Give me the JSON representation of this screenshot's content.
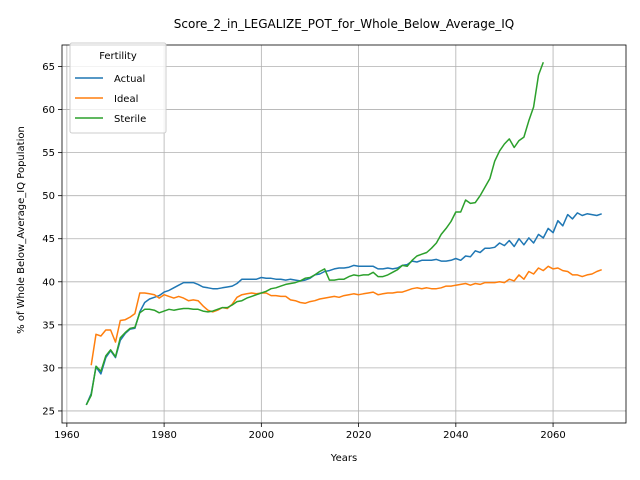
{
  "chart_data": {
    "type": "line",
    "title": "Score_2_in_LEGALIZE_POT_for_Whole_Below_Average_IQ",
    "xlabel": "Years",
    "ylabel": "% of Whole Below_Average_IQ Population",
    "xlim": [
      1959,
      2075
    ],
    "ylim": [
      23.6,
      67.5
    ],
    "xticks": [
      1960,
      1980,
      2000,
      2020,
      2040,
      2060
    ],
    "yticks": [
      25,
      30,
      35,
      40,
      45,
      50,
      55,
      60,
      65
    ],
    "grid": true,
    "legend": {
      "title": "Fertility",
      "placement": "top-left"
    },
    "series": [
      {
        "name": "Actual",
        "color": "#1f77b4",
        "points": [
          [
            1964,
            25.7
          ],
          [
            1965,
            27
          ],
          [
            1966,
            30.1
          ],
          [
            1967,
            29.3
          ],
          [
            1968,
            31.2
          ],
          [
            1969,
            32
          ],
          [
            1970,
            31.2
          ],
          [
            1971,
            33.2
          ],
          [
            1972,
            34
          ],
          [
            1973,
            34.5
          ],
          [
            1974,
            34.6
          ],
          [
            1975,
            36.5
          ],
          [
            1976,
            37.6
          ],
          [
            1977,
            38
          ],
          [
            1978,
            38.2
          ],
          [
            1979,
            38.4
          ],
          [
            1980,
            38.8
          ],
          [
            1981,
            39
          ],
          [
            1982,
            39.3
          ],
          [
            1983,
            39.6
          ],
          [
            1984,
            39.9
          ],
          [
            1985,
            39.9
          ],
          [
            1986,
            39.9
          ],
          [
            1987,
            39.7
          ],
          [
            1988,
            39.4
          ],
          [
            1989,
            39.3
          ],
          [
            1990,
            39.2
          ],
          [
            1991,
            39.2
          ],
          [
            1992,
            39.3
          ],
          [
            1993,
            39.4
          ],
          [
            1994,
            39.5
          ],
          [
            1995,
            39.8
          ],
          [
            1996,
            40.3
          ],
          [
            1997,
            40.3
          ],
          [
            1998,
            40.3
          ],
          [
            1999,
            40.3
          ],
          [
            2000,
            40.5
          ],
          [
            2001,
            40.4
          ],
          [
            2002,
            40.4
          ],
          [
            2003,
            40.3
          ],
          [
            2004,
            40.3
          ],
          [
            2005,
            40.2
          ],
          [
            2006,
            40.3
          ],
          [
            2007,
            40.2
          ],
          [
            2008,
            40.1
          ],
          [
            2009,
            40.2
          ],
          [
            2010,
            40.4
          ],
          [
            2011,
            40.8
          ],
          [
            2012,
            40.9
          ],
          [
            2013,
            41.2
          ],
          [
            2014,
            41.3
          ],
          [
            2015,
            41.5
          ],
          [
            2016,
            41.6
          ],
          [
            2017,
            41.6
          ],
          [
            2018,
            41.7
          ],
          [
            2019,
            41.9
          ],
          [
            2020,
            41.8
          ],
          [
            2021,
            41.8
          ],
          [
            2022,
            41.8
          ],
          [
            2023,
            41.8
          ],
          [
            2024,
            41.5
          ],
          [
            2025,
            41.5
          ],
          [
            2026,
            41.6
          ],
          [
            2027,
            41.5
          ],
          [
            2028,
            41.6
          ],
          [
            2029,
            41.9
          ],
          [
            2030,
            42
          ],
          [
            2031,
            42.4
          ],
          [
            2032,
            42.3
          ],
          [
            2033,
            42.5
          ],
          [
            2034,
            42.5
          ],
          [
            2035,
            42.5
          ],
          [
            2036,
            42.6
          ],
          [
            2037,
            42.4
          ],
          [
            2038,
            42.4
          ],
          [
            2039,
            42.5
          ],
          [
            2040,
            42.7
          ],
          [
            2041,
            42.5
          ],
          [
            2042,
            43
          ],
          [
            2043,
            42.9
          ],
          [
            2044,
            43.6
          ],
          [
            2045,
            43.4
          ],
          [
            2046,
            43.9
          ],
          [
            2047,
            43.9
          ],
          [
            2048,
            44
          ],
          [
            2049,
            44.5
          ],
          [
            2050,
            44.2
          ],
          [
            2051,
            44.8
          ],
          [
            2052,
            44.1
          ],
          [
            2053,
            45
          ],
          [
            2054,
            44.3
          ],
          [
            2055,
            45.1
          ],
          [
            2056,
            44.5
          ],
          [
            2057,
            45.5
          ],
          [
            2058,
            45.1
          ],
          [
            2059,
            46.2
          ],
          [
            2060,
            45.7
          ],
          [
            2061,
            47.1
          ],
          [
            2062,
            46.5
          ],
          [
            2063,
            47.8
          ],
          [
            2064,
            47.3
          ],
          [
            2065,
            48
          ],
          [
            2066,
            47.7
          ],
          [
            2067,
            47.9
          ],
          [
            2068,
            47.8
          ],
          [
            2069,
            47.7
          ],
          [
            2070,
            47.9
          ]
        ]
      },
      {
        "name": "Ideal",
        "color": "#ff7f0e",
        "points": [
          [
            1965,
            30.3
          ],
          [
            1966,
            33.9
          ],
          [
            1967,
            33.7
          ],
          [
            1968,
            34.4
          ],
          [
            1969,
            34.4
          ],
          [
            1970,
            33
          ],
          [
            1971,
            35.5
          ],
          [
            1972,
            35.6
          ],
          [
            1973,
            35.9
          ],
          [
            1974,
            36.3
          ],
          [
            1975,
            38.7
          ],
          [
            1976,
            38.7
          ],
          [
            1977,
            38.6
          ],
          [
            1978,
            38.5
          ],
          [
            1979,
            38.1
          ],
          [
            1980,
            38.5
          ],
          [
            1981,
            38.3
          ],
          [
            1982,
            38.1
          ],
          [
            1983,
            38.3
          ],
          [
            1984,
            38.1
          ],
          [
            1985,
            37.8
          ],
          [
            1986,
            37.9
          ],
          [
            1987,
            37.8
          ],
          [
            1988,
            37.2
          ],
          [
            1989,
            36.7
          ],
          [
            1990,
            36.5
          ],
          [
            1991,
            36.7
          ],
          [
            1992,
            37
          ],
          [
            1993,
            36.9
          ],
          [
            1994,
            37.4
          ],
          [
            1995,
            38.2
          ],
          [
            1996,
            38.5
          ],
          [
            1997,
            38.6
          ],
          [
            1998,
            38.7
          ],
          [
            1999,
            38.6
          ],
          [
            2000,
            38.7
          ],
          [
            2001,
            38.7
          ],
          [
            2002,
            38.4
          ],
          [
            2003,
            38.4
          ],
          [
            2004,
            38.3
          ],
          [
            2005,
            38.3
          ],
          [
            2006,
            37.9
          ],
          [
            2007,
            37.8
          ],
          [
            2008,
            37.6
          ],
          [
            2009,
            37.5
          ],
          [
            2010,
            37.7
          ],
          [
            2011,
            37.8
          ],
          [
            2012,
            38
          ],
          [
            2013,
            38.1
          ],
          [
            2014,
            38.2
          ],
          [
            2015,
            38.3
          ],
          [
            2016,
            38.2
          ],
          [
            2017,
            38.4
          ],
          [
            2018,
            38.5
          ],
          [
            2019,
            38.6
          ],
          [
            2020,
            38.5
          ],
          [
            2021,
            38.6
          ],
          [
            2022,
            38.7
          ],
          [
            2023,
            38.8
          ],
          [
            2024,
            38.5
          ],
          [
            2025,
            38.6
          ],
          [
            2026,
            38.7
          ],
          [
            2027,
            38.7
          ],
          [
            2028,
            38.8
          ],
          [
            2029,
            38.8
          ],
          [
            2030,
            39
          ],
          [
            2031,
            39.2
          ],
          [
            2032,
            39.3
          ],
          [
            2033,
            39.2
          ],
          [
            2034,
            39.3
          ],
          [
            2035,
            39.2
          ],
          [
            2036,
            39.2
          ],
          [
            2037,
            39.3
          ],
          [
            2038,
            39.5
          ],
          [
            2039,
            39.5
          ],
          [
            2040,
            39.6
          ],
          [
            2041,
            39.7
          ],
          [
            2042,
            39.8
          ],
          [
            2043,
            39.6
          ],
          [
            2044,
            39.8
          ],
          [
            2045,
            39.7
          ],
          [
            2046,
            39.9
          ],
          [
            2047,
            39.9
          ],
          [
            2048,
            39.9
          ],
          [
            2049,
            40
          ],
          [
            2050,
            39.9
          ],
          [
            2051,
            40.3
          ],
          [
            2052,
            40.1
          ],
          [
            2053,
            40.8
          ],
          [
            2054,
            40.3
          ],
          [
            2055,
            41.2
          ],
          [
            2056,
            40.9
          ],
          [
            2057,
            41.6
          ],
          [
            2058,
            41.3
          ],
          [
            2059,
            41.8
          ],
          [
            2060,
            41.5
          ],
          [
            2061,
            41.6
          ],
          [
            2062,
            41.3
          ],
          [
            2063,
            41.2
          ],
          [
            2064,
            40.8
          ],
          [
            2065,
            40.8
          ],
          [
            2066,
            40.6
          ],
          [
            2067,
            40.8
          ],
          [
            2068,
            40.9
          ],
          [
            2069,
            41.2
          ],
          [
            2070,
            41.4
          ]
        ]
      },
      {
        "name": "Sterile",
        "color": "#2ca02c",
        "points": [
          [
            1964,
            25.7
          ],
          [
            1965,
            26.8
          ],
          [
            1966,
            30.2
          ],
          [
            1967,
            29.6
          ],
          [
            1968,
            31.4
          ],
          [
            1969,
            32.1
          ],
          [
            1970,
            31.3
          ],
          [
            1971,
            33.5
          ],
          [
            1972,
            34.1
          ],
          [
            1973,
            34.6
          ],
          [
            1974,
            34.7
          ],
          [
            1975,
            36.4
          ],
          [
            1976,
            36.8
          ],
          [
            1977,
            36.8
          ],
          [
            1978,
            36.7
          ],
          [
            1979,
            36.4
          ],
          [
            1980,
            36.6
          ],
          [
            1981,
            36.8
          ],
          [
            1982,
            36.7
          ],
          [
            1983,
            36.8
          ],
          [
            1984,
            36.9
          ],
          [
            1985,
            36.9
          ],
          [
            1986,
            36.8
          ],
          [
            1987,
            36.8
          ],
          [
            1988,
            36.6
          ],
          [
            1989,
            36.5
          ],
          [
            1990,
            36.6
          ],
          [
            1991,
            36.8
          ],
          [
            1992,
            37
          ],
          [
            1993,
            37
          ],
          [
            1994,
            37.3
          ],
          [
            1995,
            37.7
          ],
          [
            1996,
            37.8
          ],
          [
            1997,
            38.1
          ],
          [
            1998,
            38.3
          ],
          [
            1999,
            38.5
          ],
          [
            2000,
            38.7
          ],
          [
            2001,
            38.9
          ],
          [
            2002,
            39.2
          ],
          [
            2003,
            39.3
          ],
          [
            2004,
            39.5
          ],
          [
            2005,
            39.7
          ],
          [
            2006,
            39.8
          ],
          [
            2007,
            39.9
          ],
          [
            2008,
            40.1
          ],
          [
            2009,
            40.4
          ],
          [
            2010,
            40.5
          ],
          [
            2011,
            40.8
          ],
          [
            2012,
            41.2
          ],
          [
            2013,
            41.5
          ],
          [
            2014,
            40.2
          ],
          [
            2015,
            40.2
          ],
          [
            2016,
            40.3
          ],
          [
            2017,
            40.3
          ],
          [
            2018,
            40.6
          ],
          [
            2019,
            40.8
          ],
          [
            2020,
            40.7
          ],
          [
            2021,
            40.8
          ],
          [
            2022,
            40.8
          ],
          [
            2023,
            41.1
          ],
          [
            2024,
            40.6
          ],
          [
            2025,
            40.6
          ],
          [
            2026,
            40.8
          ],
          [
            2027,
            41.1
          ],
          [
            2028,
            41.4
          ],
          [
            2029,
            41.9
          ],
          [
            2030,
            41.8
          ],
          [
            2031,
            42.5
          ],
          [
            2032,
            43
          ],
          [
            2033,
            43.2
          ],
          [
            2034,
            43.4
          ],
          [
            2035,
            43.9
          ],
          [
            2036,
            44.5
          ],
          [
            2037,
            45.5
          ],
          [
            2038,
            46.2
          ],
          [
            2039,
            47
          ],
          [
            2040,
            48.1
          ],
          [
            2041,
            48.1
          ],
          [
            2042,
            49.5
          ],
          [
            2043,
            49.1
          ],
          [
            2044,
            49.2
          ],
          [
            2045,
            50
          ],
          [
            2046,
            51
          ],
          [
            2047,
            52
          ],
          [
            2048,
            54
          ],
          [
            2049,
            55.2
          ],
          [
            2050,
            56
          ],
          [
            2051,
            56.6
          ],
          [
            2052,
            55.6
          ],
          [
            2053,
            56.4
          ],
          [
            2054,
            56.8
          ],
          [
            2055,
            58.7
          ],
          [
            2056,
            60.3
          ],
          [
            2057,
            64
          ],
          [
            2058,
            65.5
          ]
        ]
      }
    ]
  }
}
